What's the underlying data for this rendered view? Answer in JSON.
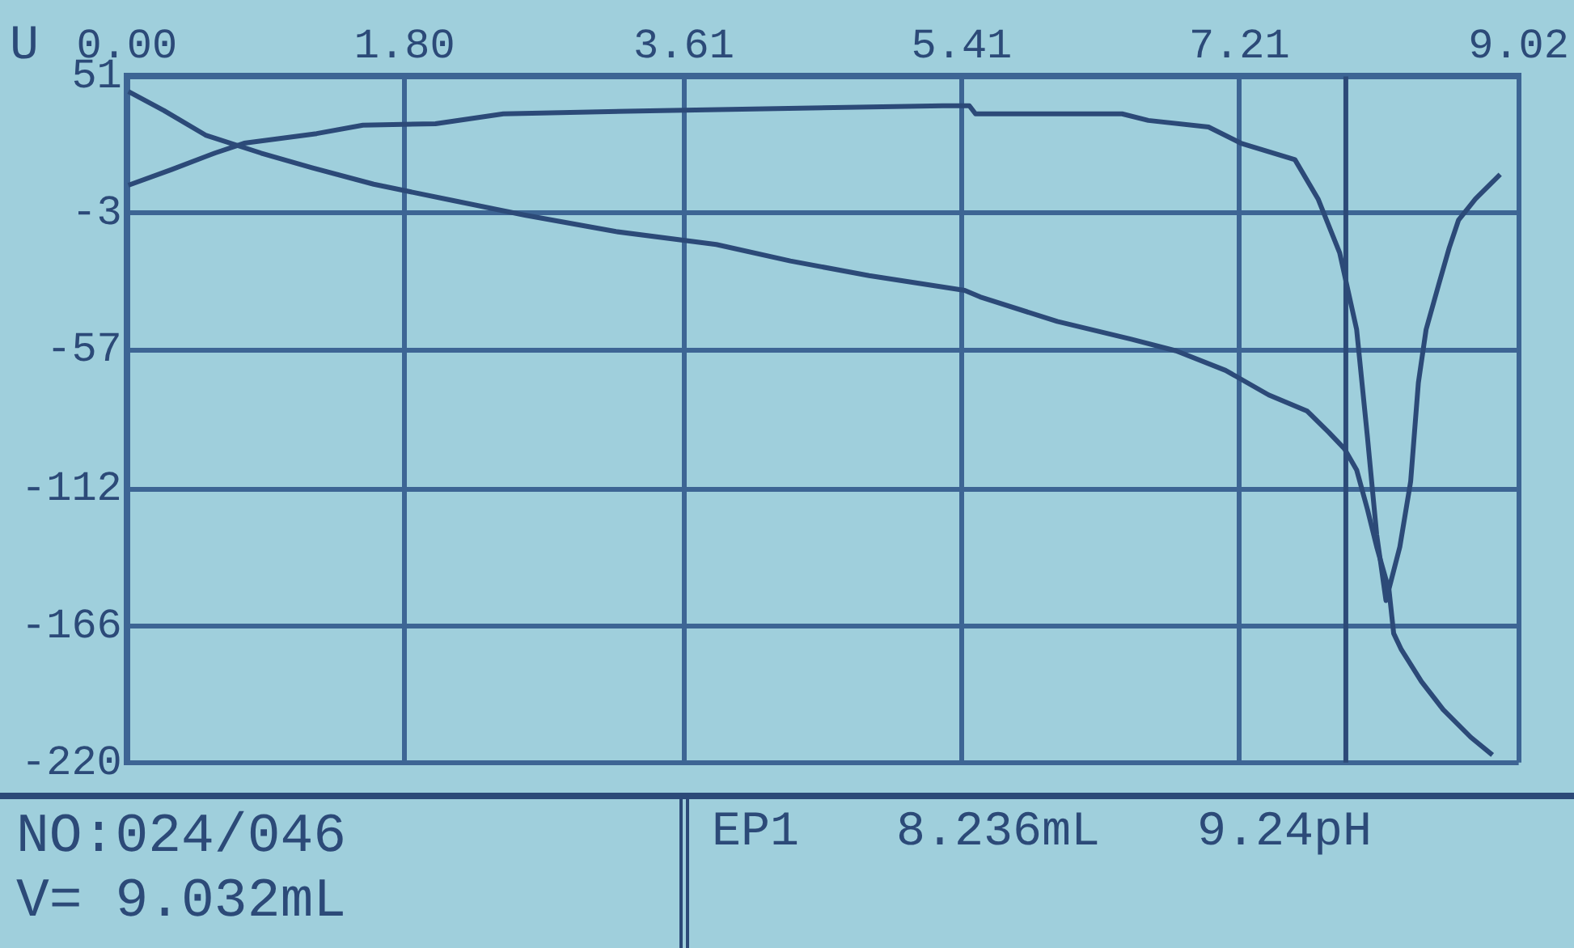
{
  "chart_data": {
    "type": "line",
    "ylabel": "U",
    "xlim": [
      0,
      9.02
    ],
    "ylim": [
      -220,
      51
    ],
    "xticks": [
      {
        "value": 0,
        "label": "0.00"
      },
      {
        "value": 1.8,
        "label": "1.80"
      },
      3.61,
      5.41,
      7.21,
      9.02
    ],
    "yticks": [
      51,
      -3,
      -57,
      -112,
      -166,
      -220
    ],
    "grid": true,
    "legend": false,
    "marker": "none",
    "line_style": "solid",
    "series": [
      {
        "color": "#2c4a78",
        "x": [
          0.01,
          0.24,
          0.51,
          0.87,
          1.2,
          1.6,
          2.11,
          2.58,
          3.17,
          3.82,
          4.3,
          4.81,
          5.43,
          5.53,
          6.03,
          6.51,
          6.8,
          7.12,
          7.4,
          7.65,
          7.79,
          7.89,
          7.97,
          8.04,
          8.1,
          8.18,
          8.21,
          8.26,
          8.39,
          8.53,
          8.71,
          8.85
        ],
        "values": [
          45,
          37.5,
          27.8,
          20.7,
          14.9,
          8.4,
          2,
          -3.8,
          -10.3,
          -15.4,
          -21.9,
          -27.7,
          -33.5,
          -36.1,
          -45.8,
          -52.8,
          -57.4,
          -65.1,
          -74.8,
          -81.2,
          -89.6,
          -96,
          -104.4,
          -120,
          -134.8,
          -152,
          -169,
          -175.4,
          -188,
          -199,
          -210,
          -217
        ]
      },
      {
        "color": "#2c4a78",
        "x": [
          0.01,
          0.29,
          0.57,
          0.76,
          1.23,
          1.53,
          2,
          2.44,
          3.46,
          5.29,
          5.46,
          5.5,
          6.45,
          6.62,
          7.01,
          7.22,
          7.57,
          7.72,
          7.86,
          7.97,
          8.04,
          8.1,
          8.16,
          8.25,
          8.32,
          8.37,
          8.42,
          8.5,
          8.57,
          8.63,
          8.74,
          8.9
        ],
        "values": [
          8,
          14.2,
          20.7,
          24.6,
          28.4,
          31.7,
          32.3,
          36.2,
          37.5,
          39.4,
          39.4,
          36.2,
          36.2,
          33.6,
          31,
          24.6,
          18.1,
          2.6,
          -18.7,
          -49,
          -91.5,
          -130,
          -156,
          -134.8,
          -109,
          -70,
          -49,
          -31.6,
          -16.7,
          -5.8,
          2.6,
          12.3
        ]
      }
    ],
    "ref_lines": [
      {
        "axis": "x",
        "value": 7.9,
        "color": "#2c4a78"
      }
    ],
    "annotations": [
      "NO:024/046",
      "V= 9.032mL",
      "EP1",
      "8.236mL",
      "9.24pH"
    ]
  }
}
